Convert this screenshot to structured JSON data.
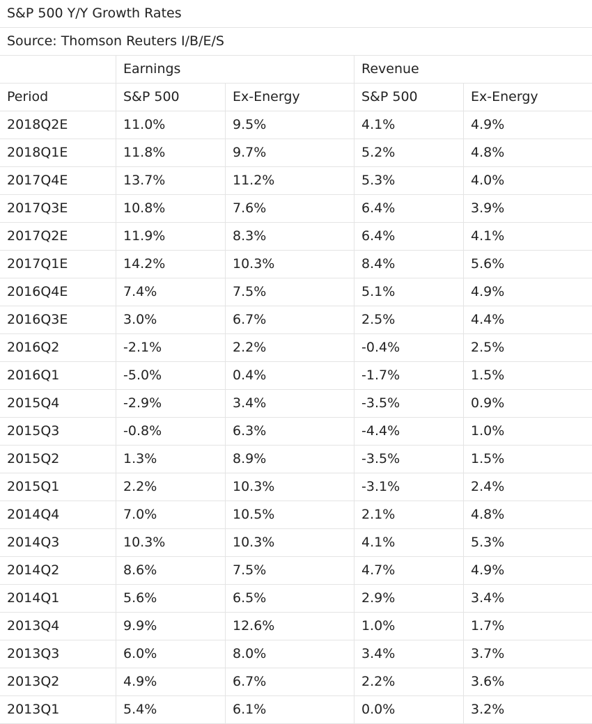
{
  "title": "S&P 500 Y/Y Growth Rates",
  "source": "Source: Thomson Reuters I/B/E/S",
  "group_headers": {
    "earnings": "Earnings",
    "revenue": "Revenue"
  },
  "columns": [
    "Period",
    "S&P 500",
    "Ex-Energy",
    "S&P 500",
    "Ex-Energy"
  ],
  "rows": [
    [
      "2018Q2E",
      "11.0%",
      "9.5%",
      "4.1%",
      "4.9%"
    ],
    [
      "2018Q1E",
      "11.8%",
      "9.7%",
      "5.2%",
      "4.8%"
    ],
    [
      "2017Q4E",
      "13.7%",
      "11.2%",
      "5.3%",
      "4.0%"
    ],
    [
      "2017Q3E",
      "10.8%",
      "7.6%",
      "6.4%",
      "3.9%"
    ],
    [
      "2017Q2E",
      "11.9%",
      "8.3%",
      "6.4%",
      "4.1%"
    ],
    [
      "2017Q1E",
      "14.2%",
      "10.3%",
      "8.4%",
      "5.6%"
    ],
    [
      "2016Q4E",
      "7.4%",
      "7.5%",
      "5.1%",
      "4.9%"
    ],
    [
      "2016Q3E",
      "3.0%",
      "6.7%",
      "2.5%",
      "4.4%"
    ],
    [
      "2016Q2",
      "-2.1%",
      "2.2%",
      "-0.4%",
      "2.5%"
    ],
    [
      "2016Q1",
      "-5.0%",
      "0.4%",
      "-1.7%",
      "1.5%"
    ],
    [
      "2015Q4",
      "-2.9%",
      "3.4%",
      "-3.5%",
      "0.9%"
    ],
    [
      "2015Q3",
      "-0.8%",
      "6.3%",
      "-4.4%",
      "1.0%"
    ],
    [
      "2015Q2",
      "1.3%",
      "8.9%",
      "-3.5%",
      "1.5%"
    ],
    [
      "2015Q1",
      "2.2%",
      "10.3%",
      "-3.1%",
      "2.4%"
    ],
    [
      "2014Q4",
      "7.0%",
      "10.5%",
      "2.1%",
      "4.8%"
    ],
    [
      "2014Q3",
      "10.3%",
      "10.3%",
      "4.1%",
      "5.3%"
    ],
    [
      "2014Q2",
      "8.6%",
      "7.5%",
      "4.7%",
      "4.9%"
    ],
    [
      "2014Q1",
      "5.6%",
      "6.5%",
      "2.9%",
      "3.4%"
    ],
    [
      "2013Q4",
      "9.9%",
      "12.6%",
      "1.0%",
      "1.7%"
    ],
    [
      "2013Q3",
      "6.0%",
      "8.0%",
      "3.4%",
      "3.7%"
    ],
    [
      "2013Q2",
      "4.9%",
      "6.7%",
      "2.2%",
      "3.6%"
    ],
    [
      "2013Q1",
      "5.4%",
      "6.1%",
      "0.0%",
      "3.2%"
    ]
  ]
}
